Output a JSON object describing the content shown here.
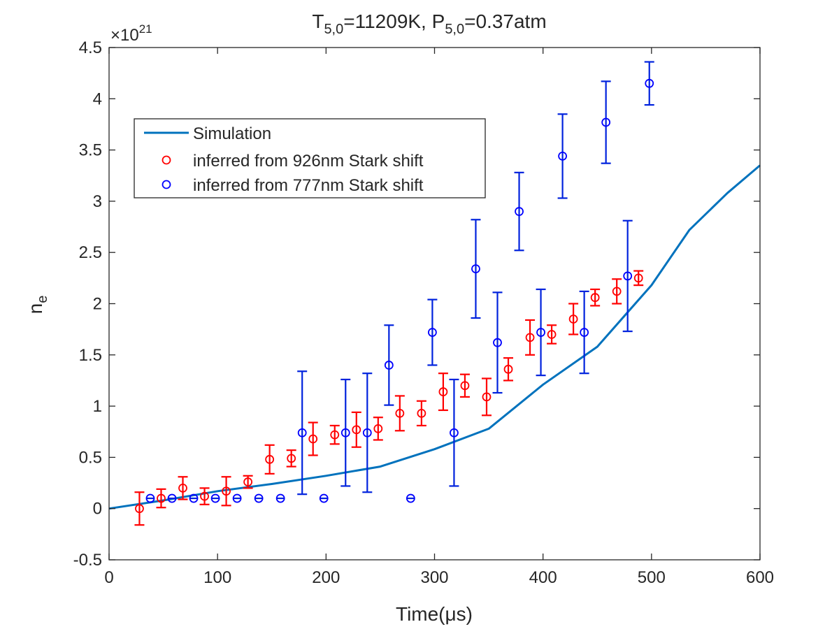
{
  "chart_data": {
    "type": "scatter",
    "title": {
      "t_base": "T",
      "t_sub": "5,0",
      "t_val": "=11209K, ",
      "p_base": "P",
      "p_sub": "5,0",
      "p_val": "=0.37atm"
    },
    "xlabel": {
      "base": "Time(",
      "mu": "μ",
      "rest": "s)"
    },
    "ylabel": {
      "base": "n",
      "sub": "e"
    },
    "exponent": {
      "prefix": "×10",
      "power": "21"
    },
    "xlim": [
      0,
      600
    ],
    "ylim": [
      -0.5,
      4.5
    ],
    "xticks": [
      0,
      100,
      200,
      300,
      400,
      500,
      600
    ],
    "yticks": [
      -0.5,
      0,
      0.5,
      1,
      1.5,
      2,
      2.5,
      3,
      3.5,
      4,
      4.5
    ],
    "xtick_labels": [
      "0",
      "100",
      "200",
      "300",
      "400",
      "500",
      "600"
    ],
    "ytick_labels": [
      "-0.5",
      "0",
      "0.5",
      "1",
      "1.5",
      "2",
      "2.5",
      "3",
      "3.5",
      "4",
      "4.5"
    ],
    "grid": false,
    "legend_position": "upper-left",
    "colors": {
      "simulation": "#0072BD",
      "red": "#FF0000",
      "blue": "#0000FF",
      "blue_err": "#0022DD"
    },
    "series": [
      {
        "name": "Simulation",
        "kind": "line",
        "x": [
          0,
          50,
          100,
          150,
          200,
          250,
          300,
          350,
          400,
          450,
          500,
          535,
          570,
          600
        ],
        "y": [
          0.0,
          0.08,
          0.17,
          0.24,
          0.32,
          0.41,
          0.58,
          0.78,
          1.21,
          1.58,
          2.18,
          2.72,
          3.08,
          3.35
        ]
      },
      {
        "name": "inferred from 926nm Stark shift",
        "kind": "errorbar",
        "x": [
          28,
          48,
          68,
          88,
          108,
          128,
          148,
          168,
          188,
          208,
          228,
          248,
          268,
          288,
          308,
          328,
          348,
          368,
          388,
          408,
          428,
          448,
          468,
          488
        ],
        "y": [
          0.0,
          0.1,
          0.2,
          0.12,
          0.17,
          0.26,
          0.48,
          0.49,
          0.68,
          0.72,
          0.77,
          0.78,
          0.93,
          0.93,
          1.14,
          1.2,
          1.09,
          1.36,
          1.67,
          1.7,
          1.85,
          2.06,
          2.12,
          2.25
        ],
        "err": [
          0.16,
          0.09,
          0.11,
          0.08,
          0.14,
          0.06,
          0.14,
          0.08,
          0.16,
          0.09,
          0.17,
          0.11,
          0.17,
          0.12,
          0.18,
          0.11,
          0.18,
          0.11,
          0.17,
          0.09,
          0.15,
          0.08,
          0.12,
          0.07
        ]
      },
      {
        "name": "inferred from 777nm Stark shift",
        "kind": "errorbar",
        "x": [
          38,
          58,
          78,
          98,
          118,
          138,
          158,
          178,
          198,
          218,
          238,
          258,
          278,
          298,
          318,
          338,
          358,
          378,
          398,
          418,
          438,
          458,
          478,
          498
        ],
        "y": [
          0.1,
          0.1,
          0.1,
          0.1,
          0.1,
          0.1,
          0.1,
          0.74,
          0.1,
          0.74,
          0.74,
          1.4,
          0.1,
          1.72,
          0.74,
          2.34,
          1.62,
          2.9,
          1.72,
          3.44,
          1.72,
          3.77,
          2.27,
          4.15
        ],
        "err": [
          0,
          0,
          0,
          0,
          0,
          0,
          0,
          0.6,
          0,
          0.52,
          0.58,
          0.39,
          0,
          0.32,
          0.52,
          0.48,
          0.49,
          0.38,
          0.42,
          0.41,
          0.4,
          0.4,
          0.54,
          0.21
        ]
      }
    ]
  }
}
